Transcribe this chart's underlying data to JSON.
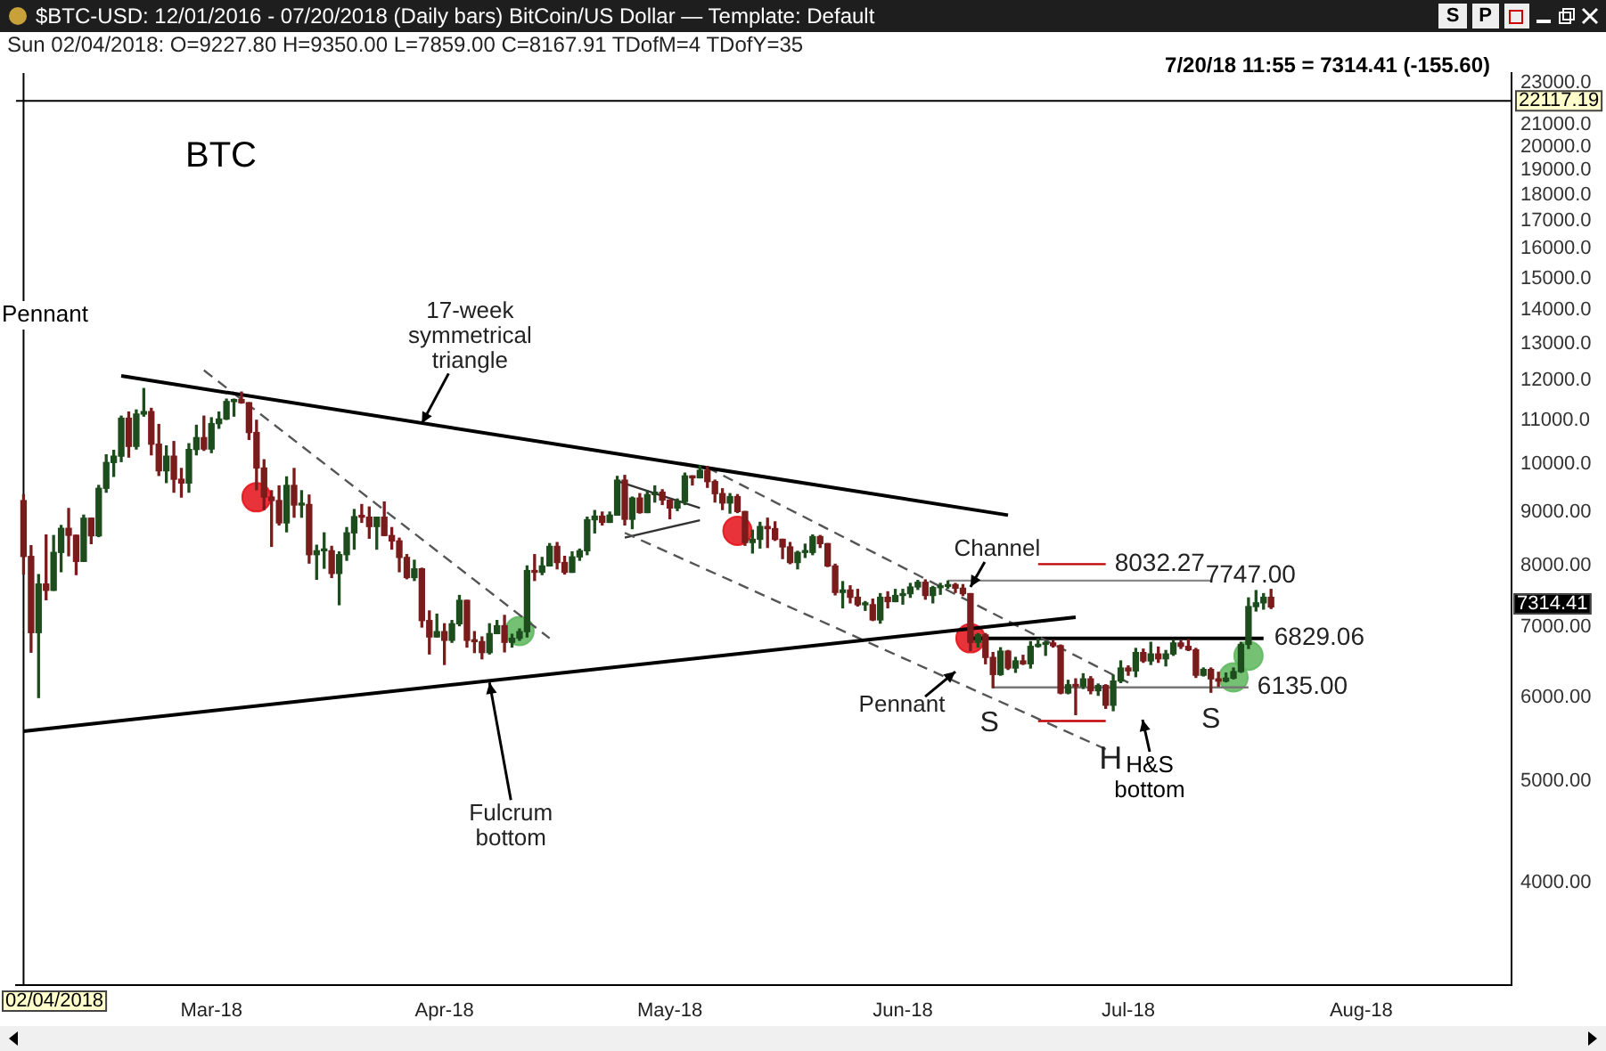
{
  "chart_data": {
    "type": "candlestick",
    "title": "$BTC-USD: 12/01/2016 - 07/20/2018 (Daily bars) BitCoin/US Dollar — Template: Default",
    "subtitle": "Sun 02/04/2018: O=9227.80 H=9350.00 L=7859.00 C=8167.91 TDofM=4 TDofY=35",
    "log": "y",
    "xlim": [
      "2018-02-03",
      "2018-08-21"
    ],
    "xticks": [
      {
        "value": "2018-03-01",
        "label": "Mar-18"
      },
      {
        "value": "2018-04-01",
        "label": "Apr-18"
      },
      {
        "value": "2018-05-01",
        "label": "May-18"
      },
      {
        "value": "2018-06-01",
        "label": "Jun-18"
      },
      {
        "value": "2018-07-01",
        "label": "Jul-18"
      },
      {
        "value": "2018-08-01",
        "label": "Aug-18"
      }
    ],
    "ylim": [
      3200,
      23500
    ],
    "yticks": [
      {
        "value": 4000,
        "label": "4000.00"
      },
      {
        "value": 5000,
        "label": "5000.00"
      },
      {
        "value": 6000,
        "label": "6000.00"
      },
      {
        "value": 7000,
        "label": "7000.00"
      },
      {
        "value": 8000,
        "label": "8000.00"
      },
      {
        "value": 9000,
        "label": "9000.00"
      },
      {
        "value": 10000,
        "label": "10000.0"
      },
      {
        "value": 11000,
        "label": "11000.0"
      },
      {
        "value": 12000,
        "label": "12000.0"
      },
      {
        "value": 13000,
        "label": "13000.0"
      },
      {
        "value": 14000,
        "label": "14000.0"
      },
      {
        "value": 15000,
        "label": "15000.0"
      },
      {
        "value": 16000,
        "label": "16000.0"
      },
      {
        "value": 17000,
        "label": "17000.0"
      },
      {
        "value": 18000,
        "label": "18000.0"
      },
      {
        "value": 19000,
        "label": "19000.0"
      },
      {
        "value": 20000,
        "label": "20000.0"
      },
      {
        "value": 21000,
        "label": "21000.0"
      },
      {
        "value": 22000,
        "label": null
      },
      {
        "value": 23000,
        "label": "23000.0"
      }
    ],
    "x": [
      "2018-02-04",
      "2018-02-05",
      "2018-02-06",
      "2018-02-07",
      "2018-02-08",
      "2018-02-09",
      "2018-02-10",
      "2018-02-11",
      "2018-02-12",
      "2018-02-13",
      "2018-02-14",
      "2018-02-15",
      "2018-02-16",
      "2018-02-17",
      "2018-02-18",
      "2018-02-19",
      "2018-02-20",
      "2018-02-21",
      "2018-02-22",
      "2018-02-23",
      "2018-02-24",
      "2018-02-25",
      "2018-02-26",
      "2018-02-27",
      "2018-02-28",
      "2018-03-01",
      "2018-03-02",
      "2018-03-03",
      "2018-03-04",
      "2018-03-05",
      "2018-03-06",
      "2018-03-07",
      "2018-03-08",
      "2018-03-09",
      "2018-03-10",
      "2018-03-11",
      "2018-03-12",
      "2018-03-13",
      "2018-03-14",
      "2018-03-15",
      "2018-03-16",
      "2018-03-17",
      "2018-03-18",
      "2018-03-19",
      "2018-03-20",
      "2018-03-21",
      "2018-03-22",
      "2018-03-23",
      "2018-03-24",
      "2018-03-25",
      "2018-03-26",
      "2018-03-27",
      "2018-03-28",
      "2018-03-29",
      "2018-03-30",
      "2018-03-31",
      "2018-04-01",
      "2018-04-02",
      "2018-04-03",
      "2018-04-04",
      "2018-04-05",
      "2018-04-06",
      "2018-04-07",
      "2018-04-08",
      "2018-04-09",
      "2018-04-10",
      "2018-04-11",
      "2018-04-12",
      "2018-04-13",
      "2018-04-14",
      "2018-04-15",
      "2018-04-16",
      "2018-04-17",
      "2018-04-18",
      "2018-04-19",
      "2018-04-20",
      "2018-04-21",
      "2018-04-22",
      "2018-04-23",
      "2018-04-24",
      "2018-04-25",
      "2018-04-26",
      "2018-04-27",
      "2018-04-28",
      "2018-04-29",
      "2018-04-30",
      "2018-05-01",
      "2018-05-02",
      "2018-05-03",
      "2018-05-04",
      "2018-05-05",
      "2018-05-06",
      "2018-05-07",
      "2018-05-08",
      "2018-05-09",
      "2018-05-10",
      "2018-05-11",
      "2018-05-12",
      "2018-05-13",
      "2018-05-14",
      "2018-05-15",
      "2018-05-16",
      "2018-05-17",
      "2018-05-18",
      "2018-05-19",
      "2018-05-20",
      "2018-05-21",
      "2018-05-22",
      "2018-05-23",
      "2018-05-24",
      "2018-05-25",
      "2018-05-26",
      "2018-05-27",
      "2018-05-28",
      "2018-05-29",
      "2018-05-30",
      "2018-05-31",
      "2018-06-01",
      "2018-06-02",
      "2018-06-03",
      "2018-06-04",
      "2018-06-05",
      "2018-06-06",
      "2018-06-07",
      "2018-06-08",
      "2018-06-09",
      "2018-06-10",
      "2018-06-11",
      "2018-06-12",
      "2018-06-13",
      "2018-06-14",
      "2018-06-15",
      "2018-06-16",
      "2018-06-17",
      "2018-06-18",
      "2018-06-19",
      "2018-06-20",
      "2018-06-21",
      "2018-06-22",
      "2018-06-23",
      "2018-06-24",
      "2018-06-25",
      "2018-06-26",
      "2018-06-27",
      "2018-06-28",
      "2018-06-29",
      "2018-06-30",
      "2018-07-01",
      "2018-07-02",
      "2018-07-03",
      "2018-07-04",
      "2018-07-05",
      "2018-07-06",
      "2018-07-07",
      "2018-07-08",
      "2018-07-09",
      "2018-07-10",
      "2018-07-11",
      "2018-07-12",
      "2018-07-13",
      "2018-07-14",
      "2018-07-15",
      "2018-07-16",
      "2018-07-17",
      "2018-07-18",
      "2018-07-19",
      "2018-07-20"
    ],
    "ohlc": [
      [
        9227.8,
        9350,
        7859,
        8167.91
      ],
      [
        8168,
        8362,
        6625,
        6915
      ],
      [
        6915,
        7850,
        6000,
        7690
      ],
      [
        7690,
        8560,
        7430,
        7585
      ],
      [
        7585,
        8550,
        7585,
        8240
      ],
      [
        8240,
        8740,
        7900,
        8685
      ],
      [
        8685,
        9070,
        8180,
        8555
      ],
      [
        8555,
        8555,
        7850,
        8080
      ],
      [
        8080,
        8940,
        8080,
        8880
      ],
      [
        8880,
        8880,
        8400,
        8545
      ],
      [
        8545,
        9540,
        8530,
        9480
      ],
      [
        9480,
        10200,
        9400,
        10030
      ],
      [
        10030,
        10300,
        9730,
        10170
      ],
      [
        10170,
        11100,
        10050,
        11050
      ],
      [
        11050,
        11200,
        10150,
        10390
      ],
      [
        10390,
        11250,
        10330,
        11150
      ],
      [
        11150,
        11790,
        11100,
        11210
      ],
      [
        11210,
        11290,
        10200,
        10440
      ],
      [
        10440,
        10900,
        9750,
        9850
      ],
      [
        9850,
        10400,
        9600,
        10170
      ],
      [
        10170,
        10500,
        9400,
        9670
      ],
      [
        9670,
        9900,
        9300,
        9590
      ],
      [
        9590,
        10450,
        9400,
        10320
      ],
      [
        10320,
        10880,
        10200,
        10590
      ],
      [
        10590,
        11100,
        10300,
        10330
      ],
      [
        10330,
        11060,
        10250,
        10920
      ],
      [
        10920,
        11200,
        10810,
        11030
      ],
      [
        11030,
        11520,
        11020,
        11460
      ],
      [
        11460,
        11520,
        11100,
        11510
      ],
      [
        11510,
        11700,
        11420,
        11430
      ],
      [
        11430,
        11430,
        10550,
        10710
      ],
      [
        10710,
        11000,
        9450,
        9910
      ],
      [
        9910,
        10090,
        9050,
        9300
      ],
      [
        9300,
        9430,
        8350,
        9230
      ],
      [
        9230,
        9530,
        8750,
        8790
      ],
      [
        8790,
        9720,
        8620,
        9540
      ],
      [
        9540,
        9900,
        8900,
        9140
      ],
      [
        9140,
        9430,
        8900,
        9150
      ],
      [
        9150,
        9340,
        8050,
        8200
      ],
      [
        8200,
        8370,
        7770,
        8270
      ],
      [
        8270,
        8600,
        7960,
        8270
      ],
      [
        8270,
        8350,
        7800,
        7870
      ],
      [
        7870,
        8250,
        7350,
        8200
      ],
      [
        8200,
        8700,
        8100,
        8600
      ],
      [
        8600,
        9050,
        8300,
        8910
      ],
      [
        8910,
        9150,
        8800,
        8900
      ],
      [
        8900,
        9100,
        8500,
        8720
      ],
      [
        8720,
        8900,
        8300,
        8900
      ],
      [
        8900,
        9200,
        8550,
        8550
      ],
      [
        8550,
        8700,
        8300,
        8450
      ],
      [
        8450,
        8500,
        7900,
        8150
      ],
      [
        8150,
        8200,
        7780,
        7800
      ],
      [
        7800,
        8100,
        7750,
        7950
      ],
      [
        7950,
        7960,
        7000,
        7100
      ],
      [
        7100,
        7250,
        6600,
        6850
      ],
      [
        6850,
        7200,
        6850,
        6930
      ],
      [
        6930,
        7050,
        6450,
        6800
      ],
      [
        6800,
        7100,
        6770,
        7050
      ],
      [
        7050,
        7500,
        7020,
        7420
      ],
      [
        7420,
        7420,
        6700,
        6800
      ],
      [
        6800,
        6930,
        6620,
        6780
      ],
      [
        6780,
        6850,
        6530,
        6620
      ],
      [
        6620,
        7050,
        6600,
        6900
      ],
      [
        6900,
        7100,
        6900,
        7020
      ],
      [
        7020,
        7180,
        6630,
        6770
      ],
      [
        6770,
        6890,
        6700,
        6830
      ],
      [
        6830,
        6970,
        6800,
        6930
      ],
      [
        6930,
        8000,
        6850,
        7920
      ],
      [
        7920,
        8200,
        7750,
        7890
      ],
      [
        7890,
        8150,
        7850,
        8000
      ],
      [
        8000,
        8400,
        8000,
        8350
      ],
      [
        8350,
        8420,
        7950,
        8060
      ],
      [
        8060,
        8170,
        7860,
        7890
      ],
      [
        7890,
        8250,
        7890,
        8160
      ],
      [
        8160,
        8300,
        8100,
        8270
      ],
      [
        8270,
        8900,
        8200,
        8850
      ],
      [
        8850,
        9030,
        8600,
        8920
      ],
      [
        8920,
        9000,
        8750,
        8800
      ],
      [
        8800,
        9000,
        8800,
        8940
      ],
      [
        8940,
        9730,
        8940,
        9650
      ],
      [
        9650,
        9750,
        8750,
        8860
      ],
      [
        8860,
        9300,
        8680,
        9280
      ],
      [
        9280,
        9370,
        8980,
        8990
      ],
      [
        8990,
        9430,
        8990,
        9350
      ],
      [
        9350,
        9530,
        9200,
        9400
      ],
      [
        9400,
        9450,
        9150,
        9240
      ],
      [
        9240,
        9240,
        8870,
        9080
      ],
      [
        9080,
        9260,
        9030,
        9210
      ],
      [
        9210,
        9800,
        9150,
        9740
      ],
      [
        9740,
        9740,
        9550,
        9700
      ],
      [
        9700,
        9960,
        9700,
        9860
      ],
      [
        9860,
        9940,
        9500,
        9620
      ],
      [
        9620,
        9650,
        9200,
        9370
      ],
      [
        9370,
        9470,
        9050,
        9180
      ],
      [
        9180,
        9370,
        8980,
        9310
      ],
      [
        9310,
        9350,
        8990,
        9010
      ],
      [
        9010,
        9010,
        8370,
        8420
      ],
      [
        8420,
        8650,
        8230,
        8480
      ],
      [
        8480,
        8800,
        8320,
        8720
      ],
      [
        8720,
        8880,
        8330,
        8680
      ],
      [
        8680,
        8810,
        8460,
        8480
      ],
      [
        8480,
        8480,
        8130,
        8340
      ],
      [
        8340,
        8420,
        8040,
        8060
      ],
      [
        8060,
        8260,
        7950,
        8240
      ],
      [
        8240,
        8390,
        8150,
        8240
      ],
      [
        8240,
        8560,
        8200,
        8530
      ],
      [
        8530,
        8550,
        8330,
        8400
      ],
      [
        8400,
        8400,
        7990,
        8000
      ],
      [
        8000,
        8030,
        7510,
        7550
      ],
      [
        7550,
        7730,
        7300,
        7590
      ],
      [
        7590,
        7660,
        7380,
        7470
      ],
      [
        7470,
        7600,
        7330,
        7350
      ],
      [
        7350,
        7400,
        7260,
        7350
      ],
      [
        7350,
        7440,
        7100,
        7110
      ],
      [
        7110,
        7530,
        7060,
        7470
      ],
      [
        7470,
        7560,
        7300,
        7400
      ],
      [
        7400,
        7600,
        7400,
        7500
      ],
      [
        7500,
        7600,
        7360,
        7530
      ],
      [
        7530,
        7700,
        7470,
        7640
      ],
      [
        7640,
        7750,
        7600,
        7720
      ],
      [
        7720,
        7760,
        7440,
        7500
      ],
      [
        7500,
        7650,
        7380,
        7630
      ],
      [
        7630,
        7700,
        7520,
        7650
      ],
      [
        7650,
        7740,
        7620,
        7680
      ],
      [
        7680,
        7700,
        7550,
        7620
      ],
      [
        7620,
        7680,
        7500,
        7530
      ],
      [
        7530,
        7530,
        6650,
        6770
      ],
      [
        6770,
        6900,
        6700,
        6880
      ],
      [
        6880,
        6900,
        6460,
        6550
      ],
      [
        6550,
        6620,
        6130,
        6310
      ],
      [
        6310,
        6690,
        6300,
        6640
      ],
      [
        6640,
        6650,
        6380,
        6400
      ],
      [
        6400,
        6550,
        6340,
        6500
      ],
      [
        6500,
        6580,
        6450,
        6460
      ],
      [
        6460,
        6780,
        6400,
        6710
      ],
      [
        6710,
        6820,
        6700,
        6740
      ],
      [
        6740,
        6780,
        6580,
        6760
      ],
      [
        6760,
        6790,
        6700,
        6720
      ],
      [
        6720,
        6730,
        6050,
        6060
      ],
      [
        6060,
        6230,
        6050,
        6170
      ],
      [
        6170,
        6250,
        5780,
        6150
      ],
      [
        6150,
        6320,
        6120,
        6250
      ],
      [
        6250,
        6280,
        6050,
        6090
      ],
      [
        6090,
        6180,
        6030,
        6160
      ],
      [
        6160,
        6170,
        5860,
        5900
      ],
      [
        5900,
        6300,
        5830,
        6220
      ],
      [
        6220,
        6500,
        6200,
        6400
      ],
      [
        6400,
        6430,
        6300,
        6360
      ],
      [
        6360,
        6680,
        6280,
        6620
      ],
      [
        6620,
        6670,
        6480,
        6500
      ],
      [
        6500,
        6770,
        6450,
        6600
      ],
      [
        6600,
        6700,
        6480,
        6530
      ],
      [
        6530,
        6650,
        6430,
        6600
      ],
      [
        6600,
        6800,
        6580,
        6760
      ],
      [
        6760,
        6790,
        6680,
        6710
      ],
      [
        6710,
        6810,
        6650,
        6660
      ],
      [
        6660,
        6680,
        6270,
        6300
      ],
      [
        6300,
        6400,
        6290,
        6380
      ],
      [
        6380,
        6400,
        6070,
        6250
      ],
      [
        6250,
        6340,
        6150,
        6220
      ],
      [
        6220,
        6330,
        6210,
        6260
      ],
      [
        6260,
        6400,
        6250,
        6350
      ],
      [
        6350,
        6770,
        6340,
        6740
      ],
      [
        6740,
        7460,
        6680,
        7320
      ],
      [
        7320,
        7580,
        7250,
        7380
      ],
      [
        7380,
        7530,
        7280,
        7470.01
      ],
      [
        7470.01,
        7600,
        7290,
        7314.41
      ]
    ],
    "series": [
      {
        "type": "line",
        "x": [
          "2018-02-17",
          "2018-06-15"
        ],
        "values": [
          12120,
          8940
        ],
        "color": "#000000",
        "line_style": "solid",
        "marker": "none"
      },
      {
        "type": "line",
        "x": [
          "2018-02-04",
          "2018-06-24"
        ],
        "values": [
          5575,
          7150
        ],
        "color": "#000000",
        "line_style": "solid",
        "marker": "none"
      },
      {
        "type": "line",
        "x": [
          "2018-02-28",
          "2018-04-15"
        ],
        "values": [
          12270,
          6830
        ],
        "color": "#555555",
        "line_style": "dashed",
        "marker": "none"
      },
      {
        "type": "line",
        "x": [
          "2018-05-06",
          "2018-07-01"
        ],
        "values": [
          9920,
          6200
        ],
        "color": "#555555",
        "line_style": "dashed",
        "marker": "none"
      },
      {
        "type": "line",
        "x": [
          "2018-04-25",
          "2018-06-28"
        ],
        "values": [
          8600,
          5360
        ],
        "color": "#555555",
        "line_style": "dashed",
        "marker": "none"
      },
      {
        "type": "line",
        "x": [
          "2018-04-24",
          "2018-05-05"
        ],
        "values": [
          9630,
          9080
        ],
        "color": "#333333",
        "line_style": "solid",
        "marker": "none"
      },
      {
        "type": "line",
        "x": [
          "2018-04-25",
          "2018-05-05"
        ],
        "values": [
          8510,
          8840
        ],
        "color": "#333333",
        "line_style": "solid",
        "marker": "none"
      },
      {
        "type": "line",
        "x": [
          "2018-06-07",
          "2018-07-12"
        ],
        "values": [
          7747,
          7747
        ],
        "color": "#888888",
        "line_style": "solid",
        "marker": "none"
      },
      {
        "type": "line",
        "x": [
          "2018-06-10",
          "2018-07-19"
        ],
        "values": [
          6829.06,
          6829.06
        ],
        "color": "#000000",
        "line_style": "solid",
        "marker": "none"
      },
      {
        "type": "line",
        "x": [
          "2018-06-13",
          "2018-07-17"
        ],
        "values": [
          6135,
          6135
        ],
        "color": "#777777",
        "line_style": "solid",
        "marker": "none"
      },
      {
        "type": "line",
        "x": [
          "2018-06-19",
          "2018-06-28"
        ],
        "values": [
          8032.27,
          8032.27
        ],
        "color": "#c00000",
        "line_style": "solid",
        "marker": "none"
      },
      {
        "type": "line",
        "x": [
          "2018-06-19",
          "2018-06-28"
        ],
        "values": [
          5700,
          5700
        ],
        "color": "#c00000",
        "line_style": "solid",
        "marker": "none"
      },
      {
        "type": "scatter",
        "x": [
          "2018-03-07",
          "2018-05-10",
          "2018-06-10",
          "2018-04-11",
          "2018-07-15",
          "2018-07-17"
        ],
        "values": [
          9295,
          8640,
          6830,
          6940,
          6270,
          6575
        ],
        "colors": [
          "#e3141b",
          "#e3141b",
          "#e3141b",
          "#5fb85f",
          "#5fb85f",
          "#5fb85f"
        ],
        "marker": "circle"
      }
    ],
    "ref_lines": [
      {
        "axis": "y",
        "value": 22117.19,
        "label": "22117.19"
      },
      {
        "axis": "x",
        "value": "2018-02-04",
        "label": "02/04/2018"
      }
    ],
    "annotations": [
      "BTC",
      "Pennant",
      {
        "text": "17-week symmetrical triangle",
        "x": "2018-03-29",
        "y": 10925
      },
      {
        "text": "Fulcrum bottom",
        "x": "2018-04-07",
        "y": 6200
      },
      {
        "text": "Channel",
        "x": "2018-06-10",
        "y": 7640
      },
      {
        "text": "Pennant",
        "x": "2018-06-08",
        "y": 6350
      },
      {
        "text": "S",
        "x": "2018-06-13",
        "y": 6135
      },
      {
        "text": "H",
        "x": "2018-06-27",
        "y": 5700
      },
      {
        "text": "S",
        "x": "2018-07-12",
        "y": 6135
      },
      "H&S bottom",
      {
        "text": "8032.27",
        "x": "2018-06-28",
        "y": 8032.27
      },
      {
        "text": "7747.00",
        "x": "2018-07-12",
        "y": 7747
      },
      {
        "text": "6829.06",
        "x": "2018-07-19",
        "y": 6829.06
      },
      {
        "text": "6135.00",
        "x": "2018-07-17",
        "y": 6135
      },
      "7/20/18 11:55 = 7314.41 (-155.60)",
      "7314.41",
      "S",
      "P"
    ]
  }
}
